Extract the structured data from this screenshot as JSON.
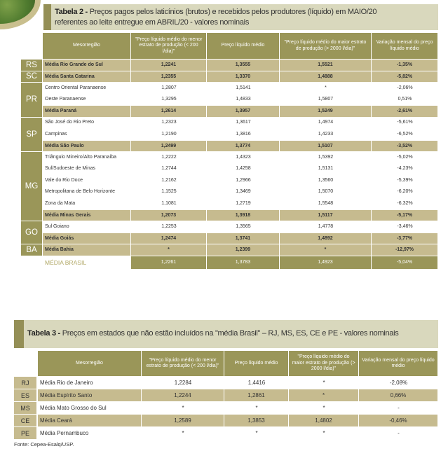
{
  "table2": {
    "title_bold": "Tabela 2 -",
    "title_line1": " Preços pagos pelos laticínios (brutos) e recebidos pelos produtores (líquido) em MAIO/20",
    "title_line2": "referentes ao leite entregue em ABRIL/20 - valores nominais",
    "headers": [
      "Mesorregião",
      "\"Preço líquido médio do menor estrato de produção (< 200 l/dia)\"",
      "Preço líquido médio",
      "\"Preço líquido médio do maior estrato de produção (> 2000 l/dia)\"",
      "Variação mensal do preço líquido médio"
    ],
    "groups": [
      {
        "state": "RS",
        "rows": [
          {
            "name": "Média Rio Grande do Sul",
            "avg": true,
            "values": [
              "1,2241",
              "1,3555",
              "1,5521",
              "-1,35%"
            ]
          }
        ]
      },
      {
        "state": "SC",
        "rows": [
          {
            "name": "Média Santa Catarina",
            "avg": true,
            "values": [
              "1,2355",
              "1,3370",
              "1,4888",
              "-5,82%"
            ]
          }
        ]
      },
      {
        "state": "PR",
        "rows": [
          {
            "name": "Centro Oriental Paranaense",
            "values": [
              "1,2807",
              "1,5141",
              "*",
              "-2,06%"
            ]
          },
          {
            "name": "Oeste Paranaense",
            "values": [
              "1,3295",
              "1,4833",
              "1,5807",
              "0,51%"
            ]
          },
          {
            "name": "Média Paraná",
            "avg": true,
            "values": [
              "1,2614",
              "1,3957",
              "1,5249",
              "-2,61%"
            ]
          }
        ]
      },
      {
        "state": "SP",
        "rows": [
          {
            "name": "São José do Rio Preto",
            "values": [
              "1,2323",
              "1,3617",
              "1,4974",
              "-5,61%"
            ]
          },
          {
            "name": "Campinas",
            "values": [
              "1,2190",
              "1,3816",
              "1,4233",
              "-6,52%"
            ]
          },
          {
            "name": "Média São Paulo",
            "avg": true,
            "values": [
              "1,2499",
              "1,3774",
              "1,5107",
              "-3,52%"
            ]
          }
        ]
      },
      {
        "state": "MG",
        "rows": [
          {
            "name": "Triângulo Mineiro/Alto Paranaíba",
            "values": [
              "1,2222",
              "1,4323",
              "1,5392",
              "-5,02%"
            ]
          },
          {
            "name": "Sul/Sudoeste de Minas",
            "values": [
              "1,2744",
              "1,4258",
              "1,5131",
              "-4,23%"
            ]
          },
          {
            "name": "Vale do Rio Doce",
            "values": [
              "1,2162",
              "1,2966",
              "1,3560",
              "-5,39%"
            ]
          },
          {
            "name": "Metropolitana de Belo Horizonte",
            "values": [
              "1,1525",
              "1,3469",
              "1,5070",
              "-6,20%"
            ]
          },
          {
            "name": "Zona da Mata",
            "values": [
              "1,1081",
              "1,2719",
              "1,5548",
              "-6,32%"
            ]
          },
          {
            "name": "Média Minas Gerais",
            "avg": true,
            "values": [
              "1,2073",
              "1,3918",
              "1,5117",
              "-5,17%"
            ]
          }
        ]
      },
      {
        "state": "GO",
        "rows": [
          {
            "name": "Sul Goiano",
            "values": [
              "1,2253",
              "1,3565",
              "1,4778",
              "-3,46%"
            ]
          },
          {
            "name": "Média Goiás",
            "avg": true,
            "values": [
              "1,2474",
              "1,3741",
              "1,4892",
              "-3,77%"
            ]
          }
        ]
      },
      {
        "state": "BA",
        "rows": [
          {
            "name": "Média Bahia",
            "avg": true,
            "values": [
              "*",
              "1,2399",
              "*",
              "-12,97%"
            ]
          }
        ]
      }
    ],
    "brasil": {
      "name": "MÉDIA BRASIL",
      "values": [
        "1,2261",
        "1,3783",
        "1,4923",
        "-5,04%"
      ]
    }
  },
  "table3": {
    "title_bold": "Tabela 3 -",
    "title_text": " Preços em estados que não estão incluídos na \"média Brasil\" – RJ, MS, ES, CE e PE - valores nominais",
    "headers": [
      "Mesorregião",
      "\"Preço líquido médio do menor estrato de produção (< 200 l/dia)\"",
      "Preço líquido médio",
      "\"Preço líquido médio do maior estrato de produção (> 2000 l/dia)\"",
      "Variação mensal do preço líquido médio"
    ],
    "rows": [
      {
        "state": "RJ",
        "name": "Média Rio de Janeiro",
        "values": [
          "1,2284",
          "1,4416",
          "*",
          "-2,08%"
        ]
      },
      {
        "state": "ES",
        "name": "Média Espírito Santo",
        "avg": true,
        "values": [
          "1,2244",
          "1,2861",
          "*",
          "0,66%"
        ]
      },
      {
        "state": "MS",
        "name": "Média Mato Grosso do Sul",
        "values": [
          "*",
          "*",
          "*",
          "-"
        ]
      },
      {
        "state": "CE",
        "name": "Média Ceará",
        "avg": true,
        "values": [
          "1,2589",
          "1,3853",
          "1,4802",
          "-0,46%"
        ]
      },
      {
        "state": "PE",
        "name": "Média Pernambuco",
        "values": [
          "*",
          "*",
          "*",
          "-"
        ]
      }
    ]
  },
  "source": "Fonte: Cepea-Esalq/USP.",
  "colors": {
    "header": "#9a9659",
    "average_row": "#c6bb8f",
    "title_bg": "#d9d8bd"
  }
}
